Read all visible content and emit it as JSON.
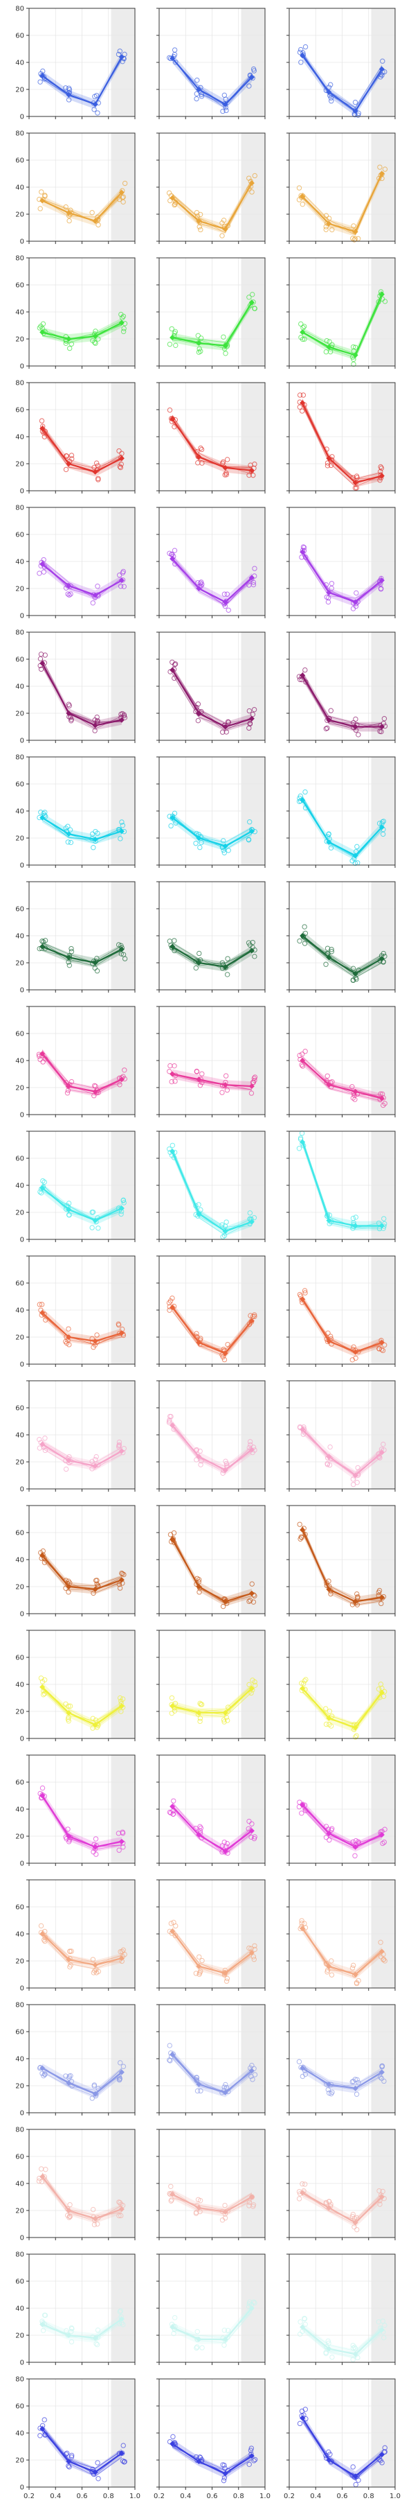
{
  "chart_data": {
    "type": "line",
    "layout": {
      "rows": 20,
      "cols": 3
    },
    "xlim": [
      0.2,
      1.0
    ],
    "ylim": [
      0,
      80
    ],
    "x_ticks": [
      "0.2",
      "0.4",
      "0.6",
      "0.8",
      "1.0"
    ],
    "y_ticks": [
      "0",
      "20",
      "40",
      "60",
      "80"
    ],
    "y_ticks_rows_7_15": [
      "0",
      "20",
      "40",
      "60"
    ],
    "x": [
      0.3,
      0.5,
      0.7,
      0.9
    ],
    "shaded_x_range": [
      0.82,
      1.0
    ],
    "grid": true,
    "rows": [
      {
        "color": "#3b5fe0",
        "panels": [
          [
            30,
            16,
            9,
            44
          ],
          [
            43,
            20,
            9,
            29
          ],
          [
            45,
            18,
            4,
            35
          ]
        ]
      },
      {
        "color": "#e8a53a",
        "panels": [
          [
            30,
            21,
            15,
            36
          ],
          [
            32,
            15,
            9,
            43
          ],
          [
            33,
            13,
            7,
            50
          ]
        ]
      },
      {
        "color": "#3de33d",
        "panels": [
          [
            25,
            20,
            22,
            32
          ],
          [
            21,
            17,
            15,
            47
          ],
          [
            25,
            14,
            8,
            53
          ]
        ]
      },
      {
        "color": "#e0352e",
        "panels": [
          [
            46,
            20,
            14,
            24
          ],
          [
            53,
            25,
            17,
            15
          ],
          [
            65,
            24,
            6,
            11
          ]
        ]
      },
      {
        "color": "#a53ee8",
        "panels": [
          [
            38,
            22,
            15,
            26
          ],
          [
            42,
            20,
            10,
            28
          ],
          [
            47,
            17,
            10,
            26
          ]
        ]
      },
      {
        "color": "#8b1a6b",
        "panels": [
          [
            57,
            20,
            11,
            15
          ],
          [
            52,
            20,
            10,
            16
          ],
          [
            48,
            15,
            10,
            10
          ]
        ]
      },
      {
        "color": "#15d1e8",
        "panels": [
          [
            35,
            23,
            19,
            25
          ],
          [
            35,
            20,
            14,
            25
          ],
          [
            48,
            17,
            7,
            28
          ]
        ]
      },
      {
        "color": "#1e6b3a",
        "panels": [
          [
            32,
            24,
            20,
            30
          ],
          [
            32,
            20,
            17,
            29
          ],
          [
            40,
            24,
            12,
            23
          ]
        ]
      },
      {
        "color": "#e83a9a",
        "panels": [
          [
            45,
            21,
            17,
            26
          ],
          [
            30,
            26,
            22,
            21
          ],
          [
            40,
            22,
            17,
            12
          ]
        ]
      },
      {
        "color": "#3ee8e8",
        "panels": [
          [
            38,
            22,
            14,
            23
          ],
          [
            65,
            19,
            6,
            13
          ],
          [
            72,
            14,
            10,
            10
          ]
        ]
      },
      {
        "color": "#e8643a",
        "panels": [
          [
            38,
            20,
            17,
            23
          ],
          [
            42,
            16,
            8,
            32
          ],
          [
            48,
            17,
            9,
            16
          ]
        ]
      },
      {
        "color": "#f5a3c8",
        "panels": [
          [
            33,
            21,
            17,
            28
          ],
          [
            47,
            24,
            14,
            29
          ],
          [
            44,
            24,
            10,
            27
          ]
        ]
      },
      {
        "color": "#c4591a",
        "panels": [
          [
            43,
            20,
            18,
            25
          ],
          [
            55,
            20,
            9,
            15
          ],
          [
            62,
            18,
            9,
            12
          ]
        ]
      },
      {
        "color": "#eef03a",
        "panels": [
          [
            38,
            19,
            10,
            24
          ],
          [
            24,
            19,
            19,
            37
          ],
          [
            37,
            15,
            8,
            34
          ]
        ]
      },
      {
        "color": "#e03ad6",
        "panels": [
          [
            50,
            20,
            12,
            16
          ],
          [
            42,
            21,
            9,
            24
          ],
          [
            43,
            22,
            12,
            21
          ]
        ]
      },
      {
        "color": "#f2a882",
        "panels": [
          [
            40,
            21,
            17,
            22
          ],
          [
            42,
            16,
            11,
            26
          ],
          [
            44,
            16,
            10,
            27
          ]
        ]
      },
      {
        "color": "#8a98e6",
        "panels": [
          [
            33,
            22,
            14,
            30
          ],
          [
            43,
            21,
            15,
            31
          ],
          [
            33,
            21,
            18,
            30
          ]
        ]
      },
      {
        "color": "#f2b0a8",
        "panels": [
          [
            45,
            20,
            14,
            21
          ],
          [
            32,
            22,
            19,
            30
          ],
          [
            33,
            22,
            11,
            30
          ]
        ]
      },
      {
        "color": "#c8f5f0",
        "panels": [
          [
            28,
            20,
            18,
            32
          ],
          [
            26,
            17,
            17,
            40
          ],
          [
            26,
            10,
            6,
            24
          ]
        ]
      },
      {
        "color": "#3a40e0",
        "panels": [
          [
            43,
            19,
            11,
            25
          ],
          [
            32,
            19,
            10,
            23
          ],
          [
            51,
            20,
            8,
            24
          ]
        ]
      }
    ]
  }
}
